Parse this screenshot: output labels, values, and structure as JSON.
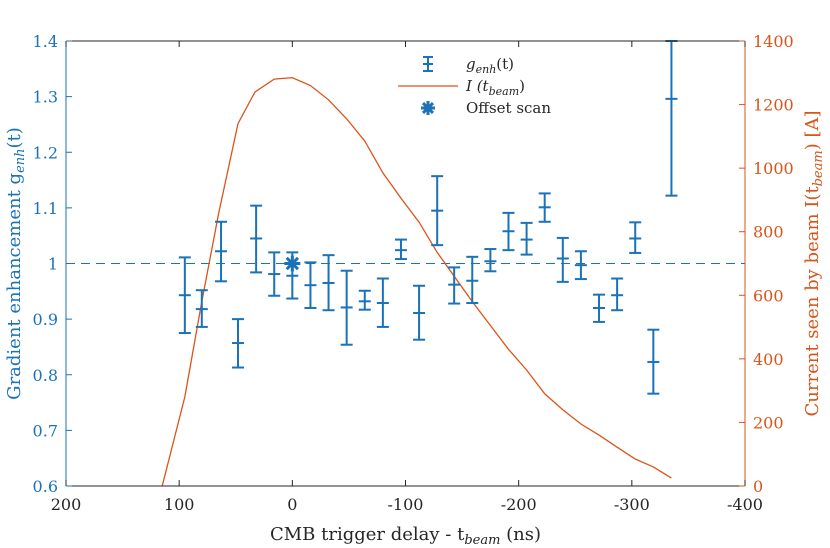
{
  "chart_data": {
    "type": "line",
    "xlabel": "CMB trigger delay - t",
    "xlabel_sub": "beam",
    "xlabel_unit": " (ns)",
    "ylabel_left": "Gradient enhancement g",
    "ylabel_left_sub": "enh",
    "ylabel_left_arg": "(t)",
    "ylabel_right": "Current seen by beam I(t",
    "ylabel_right_sub": "beam",
    "ylabel_right_unit": ") [A]",
    "xlim": [
      200,
      -400
    ],
    "ylim_left": [
      0.6,
      1.4
    ],
    "ylim_right": [
      0,
      1400
    ],
    "x_ticks": [
      200,
      100,
      0,
      -100,
      -200,
      -300,
      -400
    ],
    "x_tick_labels": [
      "200",
      "100",
      "0",
      "-100",
      "-200",
      "-300",
      "-400"
    ],
    "y_left_ticks": [
      0.6,
      0.7,
      0.8,
      0.9,
      1.0,
      1.1,
      1.2,
      1.3,
      1.4
    ],
    "y_left_tick_labels": [
      "0.6",
      "0.7",
      "0.8",
      "0.9",
      "1",
      "1.1",
      "1.2",
      "1.3",
      "1.4"
    ],
    "y_right_ticks": [
      0,
      200,
      400,
      600,
      800,
      1000,
      1200,
      1400
    ],
    "y_right_tick_labels": [
      "0",
      "200",
      "400",
      "600",
      "800",
      "1000",
      "1200",
      "1400"
    ],
    "reference_line": 1.0,
    "legend": [
      {
        "label": "g",
        "sub": "enh",
        "suffix": "(t)"
      },
      {
        "label": "I (t",
        "sub": "beam",
        "suffix": ")"
      },
      {
        "label": "Offset scan",
        "sub": "",
        "suffix": ""
      }
    ],
    "legend_position": "top-center",
    "series": [
      {
        "name": "g_enh(t)",
        "axis": "left",
        "color": "#1a72b8",
        "points": [
          {
            "x": 95,
            "y": 0.943,
            "lo": 0.875,
            "hi": 1.011
          },
          {
            "x": 80,
            "y": 0.918,
            "lo": 0.886,
            "hi": 0.952
          },
          {
            "x": 63,
            "y": 1.022,
            "lo": 0.968,
            "hi": 1.075
          },
          {
            "x": 48,
            "y": 0.857,
            "lo": 0.813,
            "hi": 0.9
          },
          {
            "x": 32,
            "y": 1.045,
            "lo": 0.984,
            "hi": 1.104
          },
          {
            "x": 16,
            "y": 0.981,
            "lo": 0.942,
            "hi": 1.02
          },
          {
            "x": 0,
            "y": 0.978,
            "lo": 0.937,
            "hi": 1.02
          },
          {
            "x": -16,
            "y": 0.961,
            "lo": 0.92,
            "hi": 1.002
          },
          {
            "x": -32,
            "y": 0.965,
            "lo": 0.916,
            "hi": 1.015
          },
          {
            "x": -48,
            "y": 0.921,
            "lo": 0.854,
            "hi": 0.987
          },
          {
            "x": -64,
            "y": 0.932,
            "lo": 0.917,
            "hi": 0.951
          },
          {
            "x": -80,
            "y": 0.929,
            "lo": 0.886,
            "hi": 0.973
          },
          {
            "x": -96,
            "y": 1.024,
            "lo": 1.008,
            "hi": 1.043
          },
          {
            "x": -112,
            "y": 0.911,
            "lo": 0.863,
            "hi": 0.96
          },
          {
            "x": -128,
            "y": 1.095,
            "lo": 1.033,
            "hi": 1.157
          },
          {
            "x": -143,
            "y": 0.962,
            "lo": 0.928,
            "hi": 0.993
          },
          {
            "x": -159,
            "y": 0.969,
            "lo": 0.929,
            "hi": 1.012
          },
          {
            "x": -175,
            "y": 1.004,
            "lo": 0.986,
            "hi": 1.026
          },
          {
            "x": -191,
            "y": 1.058,
            "lo": 1.024,
            "hi": 1.091
          },
          {
            "x": -207,
            "y": 1.043,
            "lo": 1.016,
            "hi": 1.073
          },
          {
            "x": -223,
            "y": 1.101,
            "lo": 1.075,
            "hi": 1.126
          },
          {
            "x": -239,
            "y": 1.009,
            "lo": 0.967,
            "hi": 1.046
          },
          {
            "x": -255,
            "y": 0.997,
            "lo": 0.972,
            "hi": 1.022
          },
          {
            "x": -271,
            "y": 0.92,
            "lo": 0.895,
            "hi": 0.944
          },
          {
            "x": -287,
            "y": 0.943,
            "lo": 0.916,
            "hi": 0.973
          },
          {
            "x": -303,
            "y": 1.045,
            "lo": 1.019,
            "hi": 1.074
          },
          {
            "x": -319,
            "y": 0.823,
            "lo": 0.766,
            "hi": 0.881
          },
          {
            "x": -335,
            "y": 1.296,
            "lo": 1.122,
            "hi": 1.4
          }
        ]
      },
      {
        "name": "I(t_beam)",
        "axis": "right",
        "color": "#d9541a",
        "x": [
          115,
          95,
          80,
          65,
          48,
          33,
          16,
          0,
          -16,
          -32,
          -48,
          -64,
          -80,
          -96,
          -112,
          -128,
          -143,
          -159,
          -175,
          -191,
          -207,
          -223,
          -239,
          -255,
          -271,
          -287,
          -303,
          -319,
          -335
        ],
        "y": [
          0,
          280,
          580,
          860,
          1140,
          1240,
          1280,
          1285,
          1260,
          1215,
          1155,
          1085,
          985,
          905,
          830,
          735,
          660,
          580,
          505,
          430,
          365,
          290,
          240,
          195,
          160,
          122,
          85,
          60,
          25
        ]
      },
      {
        "name": "Offset scan",
        "axis": "left",
        "color": "#1a72b8",
        "points": [
          {
            "x": 0,
            "y": 1.0
          }
        ]
      }
    ]
  }
}
